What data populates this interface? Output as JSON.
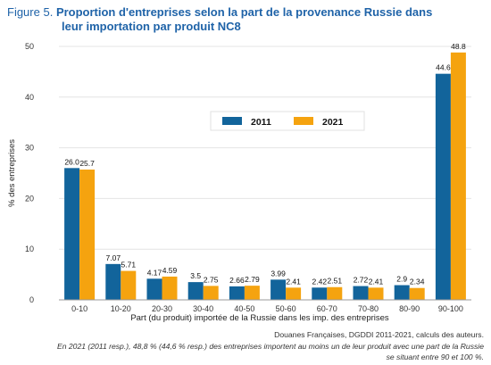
{
  "figure": {
    "label": "Figure 5.",
    "title_line1": "Proportion d'entreprises selon la part de la provenance Russie dans",
    "title_line2": "leur importation par produit NC8"
  },
  "chart_data": {
    "type": "bar",
    "title": "Proportion d'entreprises selon la part de la provenance Russie dans leur importation par produit NC8",
    "xlabel": "Part (du produit) importée de la Russie dans les imp. des entreprises",
    "ylabel": "% des entreprises",
    "ylim": [
      0,
      50
    ],
    "yticks": [
      0,
      10,
      20,
      30,
      40,
      50
    ],
    "grid": true,
    "legend_position": "center-right",
    "categories": [
      "0-10",
      "10-20",
      "20-30",
      "30-40",
      "40-50",
      "50-60",
      "60-70",
      "70-80",
      "80-90",
      "90-100"
    ],
    "series": [
      {
        "name": "2011",
        "color": "#12649b",
        "values": [
          26.0,
          7.07,
          4.17,
          3.5,
          2.66,
          3.99,
          2.42,
          2.72,
          2.9,
          44.6
        ],
        "labels": [
          "26.0",
          "7.07",
          "4.17",
          "3.5",
          "2.66",
          "3.99",
          "2.42",
          "2.72",
          "2.9",
          "44.6"
        ]
      },
      {
        "name": "2021",
        "color": "#f5a30f",
        "values": [
          25.7,
          5.71,
          4.59,
          2.75,
          2.79,
          2.41,
          2.51,
          2.41,
          2.34,
          48.8
        ],
        "labels": [
          "25.7",
          "5.71",
          "4.59",
          "2.75",
          "2.79",
          "2.41",
          "2.51",
          "2.41",
          "2.34",
          "48.8"
        ]
      }
    ]
  },
  "notes": {
    "source": "Douanes Françaises, DGDDI 2011-2021, calculs des auteurs.",
    "footnote_line1": "En 2021 (2011 resp.), 48,8 % (44,6 % resp.) des entreprises importent au moins un de leur produit avec une part de la Russie",
    "footnote_line2": "se situant entre 90 et 100 %."
  }
}
